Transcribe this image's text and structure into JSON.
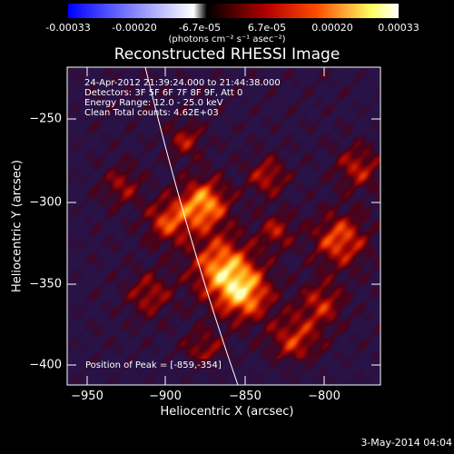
{
  "colorbar": {
    "ticks": [
      "-0.00033",
      "-0.00020",
      "-6.7e-05",
      "6.7e-05",
      "0.00020",
      "0.00033"
    ],
    "units": "(photons cm⁻² s⁻¹ asec⁻²)",
    "colors": [
      "#0000ff",
      "#ffffff",
      "#000000",
      "#b30000",
      "#ff4a00",
      "#ffff66",
      "#ffffff"
    ]
  },
  "plot": {
    "title": "Reconstructed RHESSI Image",
    "info_lines": [
      "24-Apr-2012 21:39:24.000 to 21:44:38.000",
      "Detectors: 3F 5F 6F 7F 8F 9F, Att 0",
      "Energy Range: 12.0 - 25.0 keV",
      "Clean     Total counts: 4.62E+03"
    ],
    "peak_label": "Position of Peak = [-859,-354]",
    "x_title": "Heliocentric X (arcsec)",
    "y_title": "Heliocentric Y (arcsec)",
    "x_ticks": [
      "−950",
      "−900",
      "−850",
      "−800"
    ],
    "y_ticks": [
      "−250",
      "−300",
      "−350",
      "−400"
    ],
    "colors": {
      "background": "#32194e",
      "limb": "#ffffff"
    }
  },
  "footer": {
    "date": "3-May-2014 04:04"
  }
}
